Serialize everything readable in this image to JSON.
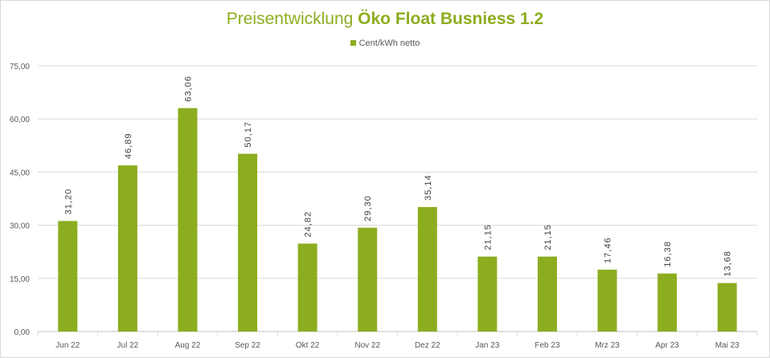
{
  "chart_data": {
    "type": "bar",
    "title_regular": "Preisentwicklung ",
    "title_bold": "Öko Float Busniess 1.2",
    "legend": [
      "Cent/kWh netto"
    ],
    "legend_placement": "top",
    "categories": [
      "Jun 22",
      "Jul 22",
      "Aug 22",
      "Sep 22",
      "Okt 22",
      "Nov 22",
      "Dez 22",
      "Jan 23",
      "Feb 23",
      "Mrz 23",
      "Apr 23",
      "Mai 23"
    ],
    "series": [
      {
        "name": "Cent/kWh netto",
        "values": [
          31.2,
          46.89,
          63.06,
          50.17,
          24.82,
          29.3,
          35.14,
          21.15,
          21.15,
          17.46,
          16.38,
          13.68
        ]
      }
    ],
    "data_labels": [
      "31,20",
      "46,89",
      "63,06",
      "50,17",
      "24,82",
      "29,30",
      "35,14",
      "21,15",
      "21,15",
      "17,46",
      "16,38",
      "13,68"
    ],
    "yticks": [
      "0,00",
      "15,00",
      "30,00",
      "45,00",
      "60,00",
      "75,00"
    ],
    "ytick_values": [
      0,
      15,
      30,
      45,
      60,
      75
    ],
    "ylim": [
      0,
      75
    ],
    "grid": true,
    "bar_color": "#8cad1f"
  }
}
